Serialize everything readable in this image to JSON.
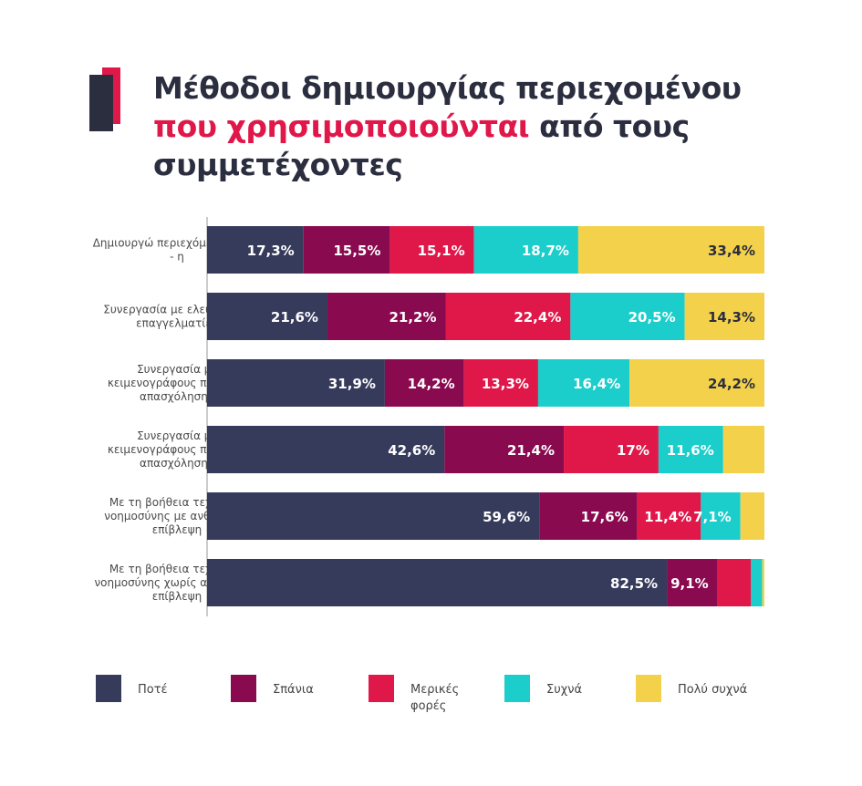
{
  "title": {
    "part1": "Μέθοδοι δημιουργίας περιεχομένου ",
    "highlight": "που χρησιμοποιούνται",
    "part2": " από τους συμμετέχοντες"
  },
  "colors": {
    "never": "#363b5c",
    "rarely": "#8a0a50",
    "sometimes": "#e0184a",
    "often": "#1ccecb",
    "very_often": "#f4d14a",
    "accent": "#e0184a",
    "dark": "#2b2e3f"
  },
  "legend": [
    {
      "label": "Ποτέ",
      "color": "#363b5c"
    },
    {
      "label": "Σπάνια",
      "color": "#8a0a50"
    },
    {
      "label": "Μερικές φορές",
      "color": "#e0184a"
    },
    {
      "label": "Συχνά",
      "color": "#1ccecb"
    },
    {
      "label": "Πολύ συχνά",
      "color": "#f4d14a"
    }
  ],
  "chart_data": {
    "type": "bar",
    "orientation": "horizontal",
    "stacked": true,
    "xlim": [
      0,
      100
    ],
    "categories": [
      "Δημιουργώ περιεχόμενο μόνος - η",
      "Συνεργασία με ελεύθερους επαγγελματίες",
      "Συνεργασία με κειμενογράφους πλήρους απασχόλησης",
      "Συνεργασία με κειμενογράφους πλήρους απασχόλησης",
      "Με τη βοήθεια τεχνητής νοημοσύνης με ανθρώπινη επίβλεψη",
      "Με τη βοήθεια τεχνητής νοημοσύνης χωρίς ανθρώπινη επίβλεψη"
    ],
    "series": [
      {
        "name": "Ποτέ",
        "values": [
          17.3,
          21.6,
          31.9,
          42.6,
          59.6,
          82.5
        ],
        "labels": [
          "17,3%",
          "21,6%",
          "31,9%",
          "42,6%",
          "59,6%",
          "82,5%"
        ]
      },
      {
        "name": "Σπάνια",
        "values": [
          15.5,
          21.2,
          14.2,
          21.4,
          17.6,
          9.1
        ],
        "labels": [
          "15,5%",
          "21,2%",
          "14,2%",
          "21,4%",
          "17,6%",
          "9,1%"
        ]
      },
      {
        "name": "Μερικές φορές",
        "values": [
          15.1,
          22.4,
          13.3,
          17.0,
          11.4,
          6.0
        ],
        "labels": [
          "15,1%",
          "22,4%",
          "13,3%",
          "17%",
          "11,4%",
          ""
        ]
      },
      {
        "name": "Συχνά",
        "values": [
          18.7,
          20.5,
          16.4,
          11.6,
          7.1,
          2.0
        ],
        "labels": [
          "18,7%",
          "20,5%",
          "16,4%",
          "11,6%",
          "7,1%",
          ""
        ]
      },
      {
        "name": "Πολύ συχνά",
        "values": [
          33.4,
          14.3,
          24.2,
          7.4,
          4.3,
          0.4
        ],
        "labels": [
          "33,4%",
          "14,3%",
          "24,2%",
          "",
          "",
          ""
        ]
      }
    ]
  }
}
